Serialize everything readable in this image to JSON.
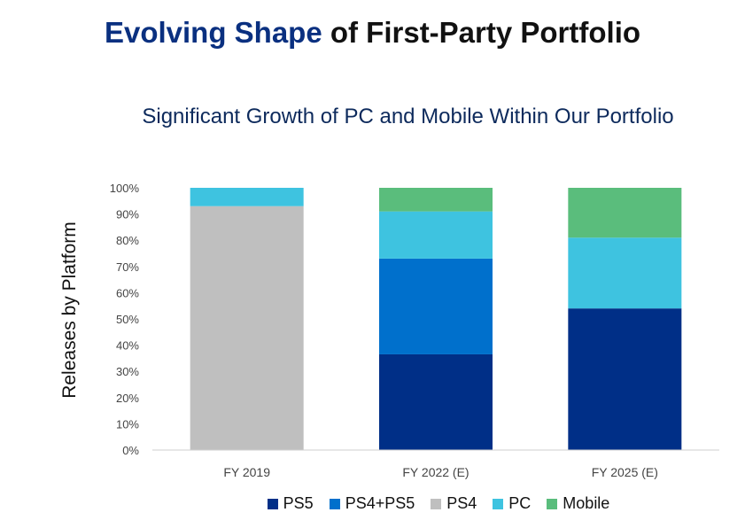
{
  "title": {
    "accent": "Evolving Shape",
    "rest": "of First-Party Portfolio"
  },
  "chart_data": {
    "type": "bar",
    "stacked": true,
    "title": "Significant Growth of PC and Mobile Within Our Portfolio",
    "xlabel": "",
    "ylabel": "Releases by Platform",
    "categories": [
      "FY 2019",
      "FY 2022 (E)",
      "FY 2025 (E)"
    ],
    "ylim": [
      0,
      100
    ],
    "yticks": [
      0,
      10,
      20,
      30,
      40,
      50,
      60,
      70,
      80,
      90,
      100
    ],
    "ytick_labels": [
      "0%",
      "10%",
      "20%",
      "30%",
      "40%",
      "50%",
      "60%",
      "70%",
      "80%",
      "90%",
      "100%"
    ],
    "grid": false,
    "legend_position": "bottom",
    "series": [
      {
        "name": "PS5",
        "color": "#002f87",
        "values": [
          0,
          36.5,
          54
        ]
      },
      {
        "name": "PS4+PS5",
        "color": "#0070cc",
        "values": [
          0,
          36.5,
          0
        ]
      },
      {
        "name": "PS4",
        "color": "#bfbfbf",
        "values": [
          93,
          0,
          0
        ]
      },
      {
        "name": "PC",
        "color": "#3ec3e0",
        "values": [
          7,
          18,
          27
        ]
      },
      {
        "name": "Mobile",
        "color": "#5abd7c",
        "values": [
          0,
          9,
          19
        ]
      }
    ]
  }
}
